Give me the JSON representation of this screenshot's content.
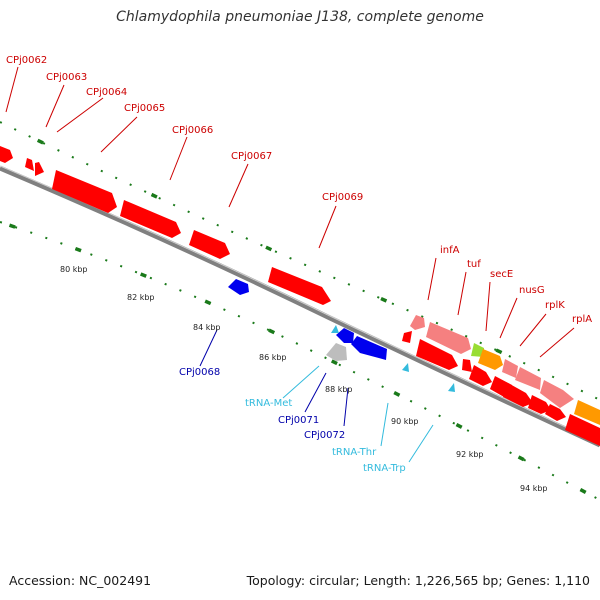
{
  "title": "Chlamydophila pneumoniae J138, complete genome",
  "footer": {
    "accession": "Accession: NC_002491",
    "summary": "Topology: circular; Length: 1,226,565 bp; Genes: 1,110"
  },
  "colors": {
    "gene_label": "#cc0000",
    "reverse_label": "#0000aa",
    "rna_label": "#33bbdd",
    "scale_label": "#222222",
    "backbone": "#808080",
    "tick_green": "#1a7a1a"
  },
  "scale": [
    "80 kbp",
    "82 kbp",
    "84 kbp",
    "86 kbp",
    "88 kbp",
    "90 kbp",
    "92 kbp",
    "94 kbp"
  ],
  "forward_labels": [
    "CPj0062",
    "CPj0063",
    "CPj0064",
    "CPj0065",
    "CPj0066",
    "CPj0067",
    "CPj0069",
    "infA",
    "tuf",
    "secE",
    "nusG",
    "rplK",
    "rplA"
  ],
  "lower_labels": [
    {
      "text": "CPj0068",
      "kind": "reverse"
    },
    {
      "text": "tRNA-Met",
      "kind": "rna"
    },
    {
      "text": "CPj0071",
      "kind": "reverse"
    },
    {
      "text": "CPj0072",
      "kind": "reverse"
    },
    {
      "text": "tRNA-Thr",
      "kind": "rna"
    },
    {
      "text": "tRNA-Trp",
      "kind": "rna"
    }
  ]
}
